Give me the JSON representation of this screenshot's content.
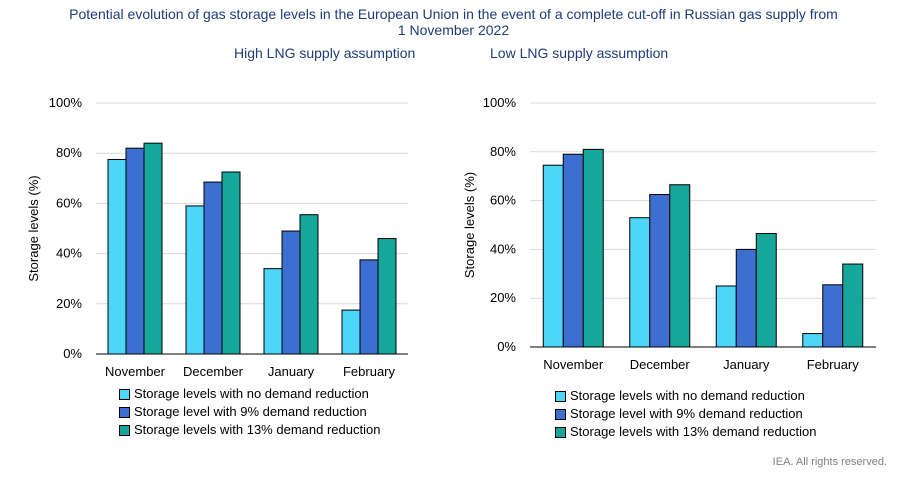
{
  "title_line1": "Potential evolution of gas storage levels in the European Union in the event of a complete cut-off in Russian gas supply from",
  "title_line2": "1 November 2022",
  "credit": "IEA. All rights reserved.",
  "colors": {
    "no_reduction": "#4dd6fa",
    "reduction_9": "#3d6fd1",
    "reduction_13": "#17a69b"
  },
  "chart_data": [
    {
      "type": "bar",
      "title": "High LNG supply assumption",
      "ylabel": "Storage levels (%)",
      "ylim": [
        0,
        100
      ],
      "yticks": [
        "0%",
        "20%",
        "40%",
        "60%",
        "80%",
        "100%"
      ],
      "grid": true,
      "categories": [
        "November",
        "December",
        "January",
        "February"
      ],
      "series": [
        {
          "name": "Storage levels with no demand reduction",
          "values": [
            77.5,
            59,
            34,
            17.5
          ]
        },
        {
          "name": "Storage level with 9% demand reduction",
          "values": [
            82,
            68.5,
            49,
            37.5
          ]
        },
        {
          "name": "Storage levels with 13% demand reduction",
          "values": [
            84,
            72.5,
            55.5,
            46
          ]
        }
      ]
    },
    {
      "type": "bar",
      "title": "Low LNG supply assumption",
      "ylabel": "Storage levels (%)",
      "ylim": [
        0,
        100
      ],
      "yticks": [
        "0%",
        "20%",
        "40%",
        "60%",
        "80%",
        "100%"
      ],
      "grid": true,
      "categories": [
        "November",
        "December",
        "January",
        "February"
      ],
      "series": [
        {
          "name": "Storage levels with no demand reduction",
          "values": [
            74.5,
            53,
            25,
            5.5
          ]
        },
        {
          "name": "Storage level with 9% demand reduction",
          "values": [
            79,
            62.5,
            40,
            25.5
          ]
        },
        {
          "name": "Storage levels with 13% demand reduction",
          "values": [
            81,
            66.5,
            46.5,
            34
          ]
        }
      ]
    }
  ]
}
